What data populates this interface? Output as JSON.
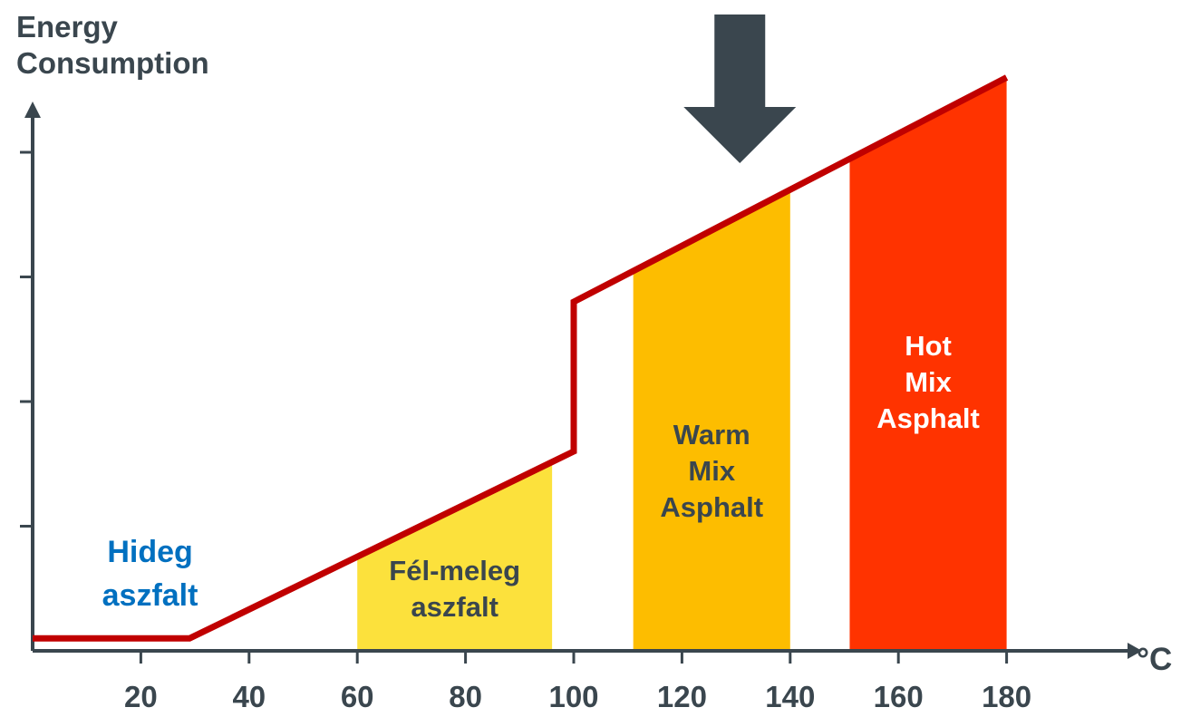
{
  "chart_data": {
    "type": "area",
    "ylabel": [
      "Energy",
      "Consumption"
    ],
    "xunit": "°C",
    "xticks": [
      20,
      40,
      60,
      80,
      100,
      120,
      140,
      160,
      180
    ],
    "xlim": [
      0,
      198
    ],
    "ylim": [
      0,
      100
    ],
    "y_tick_count": 4,
    "grid": false,
    "line": {
      "color": "#c00000",
      "points": [
        [
          0,
          1
        ],
        [
          29,
          1
        ],
        [
          100,
          16
        ],
        [
          100,
          28
        ],
        [
          180,
          46
        ]
      ]
    },
    "bands": [
      {
        "name": "Fél-meleg aszfalt",
        "lines": [
          "Fél-meleg",
          "aszfalt"
        ],
        "x0": 60,
        "x1": 96,
        "color": "#fce13c",
        "label_color": "#3a464e"
      },
      {
        "name": "Warm Mix Asphalt",
        "lines": [
          "Warm",
          "Mix",
          "Asphalt"
        ],
        "x0": 111,
        "x1": 140,
        "color": "#fdbd00",
        "label_color": "#3a464e"
      },
      {
        "name": "Hot Mix Asphalt",
        "lines": [
          "Hot",
          "Mix",
          "Asphalt"
        ],
        "x0": 151,
        "x1": 180,
        "color": "#ff3300",
        "label_color": "#ffffff"
      }
    ],
    "annotations": [
      {
        "name": "Hideg aszfalt",
        "lines": [
          "Hideg",
          "aszfalt"
        ],
        "x": 15,
        "color": "#0070c0"
      }
    ],
    "marker": {
      "type": "down-arrow",
      "x": 125,
      "color": "#3a464e"
    },
    "axis_color": "#3a464e"
  }
}
